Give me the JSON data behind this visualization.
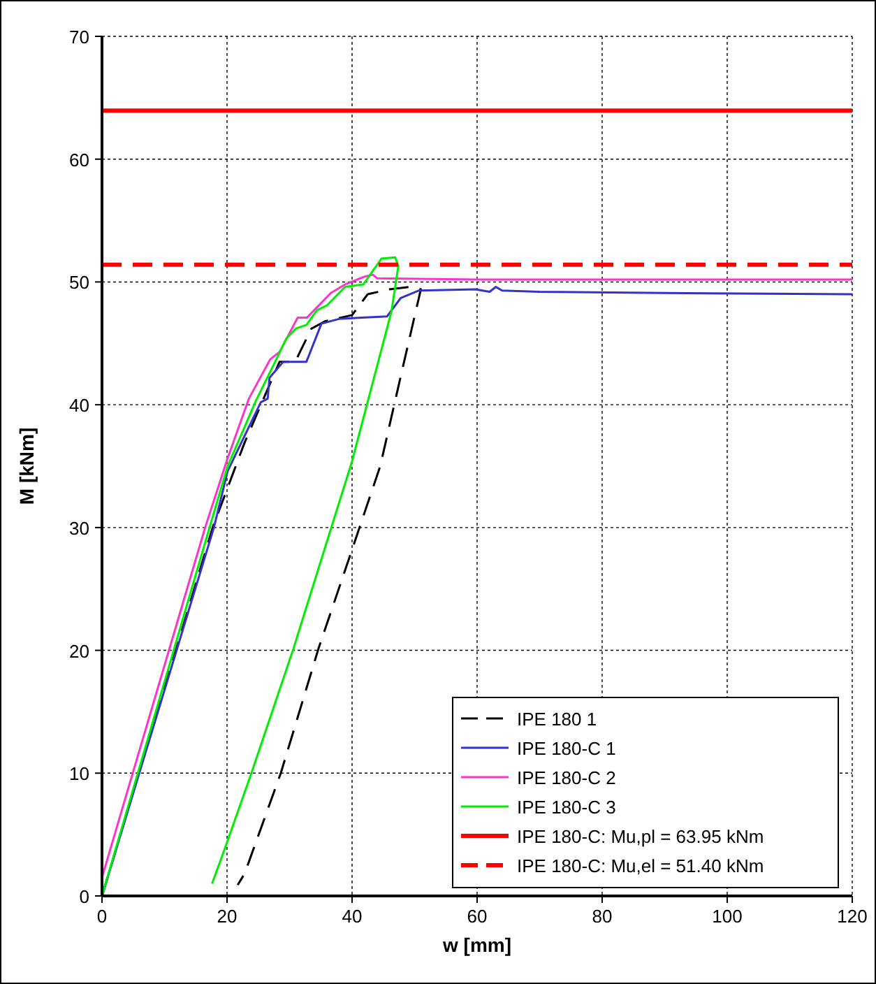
{
  "chart_data": {
    "type": "line",
    "xlabel": "w [mm]",
    "ylabel": "M [kNm]",
    "xlim": [
      0,
      120
    ],
    "xticks": [
      0,
      20,
      40,
      60,
      80,
      100,
      120
    ],
    "ylim": [
      0,
      70
    ],
    "yticks": [
      0,
      10,
      20,
      30,
      40,
      50,
      60,
      70
    ],
    "grid": true,
    "legend": "bottom right",
    "series": [
      {
        "name": "IPE 180 1",
        "color": "#000000",
        "line_style": "dashed",
        "x": [
          0,
          17.7,
          22.8,
          25,
          28.4,
          30.9,
          33.5,
          35.7,
          40,
          42.5,
          46,
          49.2,
          51,
          48,
          44.5,
          40,
          34.6,
          28.6,
          22.8,
          21.7
        ],
        "values": [
          0,
          30,
          36.9,
          39.5,
          43.5,
          43.5,
          46.2,
          46.8,
          47.3,
          49,
          49.4,
          49.6,
          49.4,
          42.8,
          35,
          28.2,
          20.1,
          10,
          1.8,
          0.9
        ]
      },
      {
        "name": "IPE 180-C 1",
        "color": "#3333cc",
        "line_style": "solid",
        "x": [
          0,
          17.9,
          20.1,
          25.4,
          26.5,
          26.8,
          29,
          32.7,
          35.1,
          38,
          45.6,
          47.8,
          50.7,
          59.7,
          62,
          63,
          64,
          70,
          90,
          120
        ],
        "values": [
          0,
          30,
          34.6,
          40.2,
          40.5,
          42.2,
          43.5,
          43.5,
          46.6,
          47,
          47.2,
          48.7,
          49.3,
          49.4,
          49.2,
          49.6,
          49.3,
          49.2,
          49.1,
          49
        ]
      },
      {
        "name": "IPE 180-C 2",
        "color": "#ff33cc",
        "line_style": "solid",
        "x": [
          0,
          16.5,
          20,
          23.5,
          26.9,
          28.4,
          31.3,
          32.8,
          36.6,
          38.9,
          41.8,
          43.3,
          44,
          60,
          120
        ],
        "values": [
          1.5,
          30,
          35.5,
          40.5,
          43.7,
          44.3,
          47.1,
          47.1,
          49.1,
          49.8,
          50.4,
          50.6,
          50.3,
          50.2,
          50.2
        ]
      },
      {
        "name": "IPE 180-C 3",
        "color": "#00ee00",
        "line_style": "solid",
        "x": [
          0,
          17.2,
          20.1,
          24.6,
          27.6,
          29.5,
          31,
          32.7,
          34.4,
          36,
          38.9,
          41.8,
          44.7,
          46.9,
          47.4,
          46.3,
          40,
          30.6,
          23.9,
          19.4,
          17.6
        ],
        "values": [
          0,
          30,
          35,
          40.3,
          43.4,
          45.4,
          46.2,
          46.5,
          47.7,
          48.1,
          49.6,
          49.8,
          51.9,
          52,
          51.3,
          47.6,
          35.4,
          20.1,
          10,
          3.5,
          1
        ]
      },
      {
        "name": "IPE 180-C: Mu,pl = 63.95 kNm",
        "color": "#ff0000",
        "line_style": "solid",
        "x": [
          0,
          120
        ],
        "values": [
          63.95,
          63.95
        ]
      },
      {
        "name": "IPE 180-C: Mu,el = 51.40 kNm",
        "color": "#ff0000",
        "line_style": "dashed",
        "x": [
          0,
          120
        ],
        "values": [
          51.4,
          51.4
        ]
      }
    ]
  }
}
